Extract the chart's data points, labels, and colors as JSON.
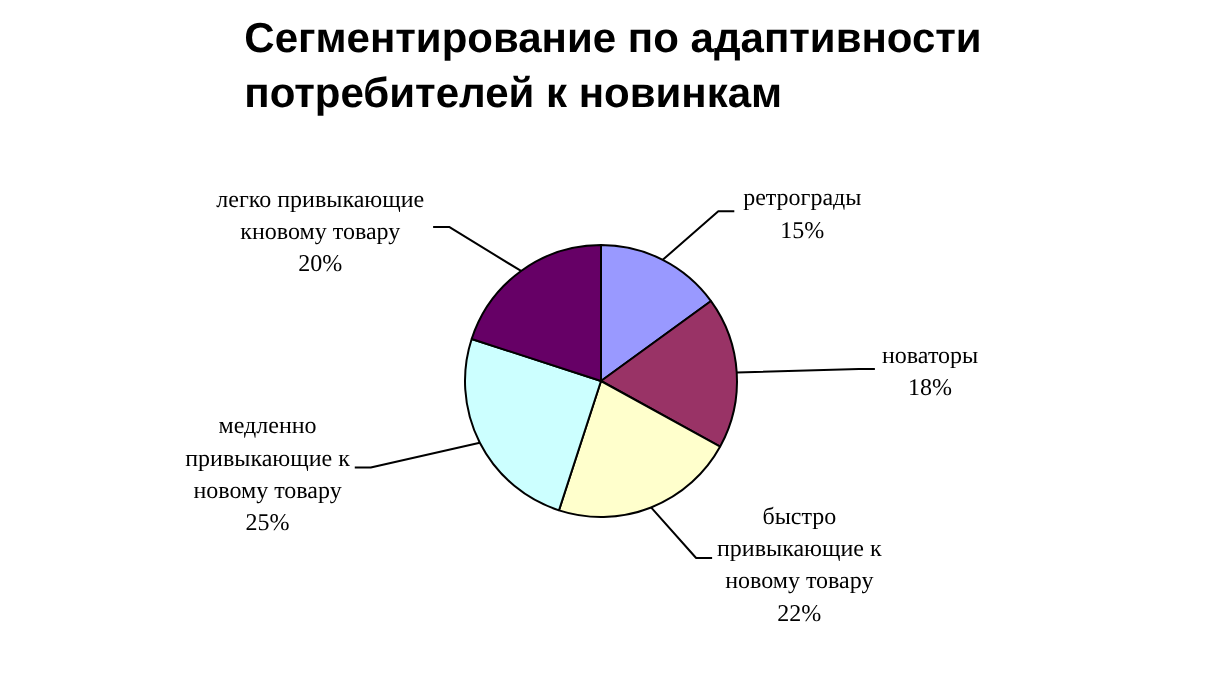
{
  "chart_data": {
    "type": "pie",
    "title": "Сегментирование по адаптивности\nпотребителей к новинкам",
    "categories": [
      "ретрограды",
      "новаторы",
      "быстро\nпривыкающие к\nновому товару",
      "медленно\nпривыкающие к\nновому товару",
      "легко привыкающие\nкновому товару"
    ],
    "values": [
      15,
      18,
      22,
      25,
      20
    ],
    "value_labels": [
      "15%",
      "18%",
      "22%",
      "25%",
      "20%"
    ],
    "colors": [
      "#9999ff",
      "#993366",
      "#ffffcc",
      "#ccffff",
      "#660066"
    ],
    "legend": false
  }
}
